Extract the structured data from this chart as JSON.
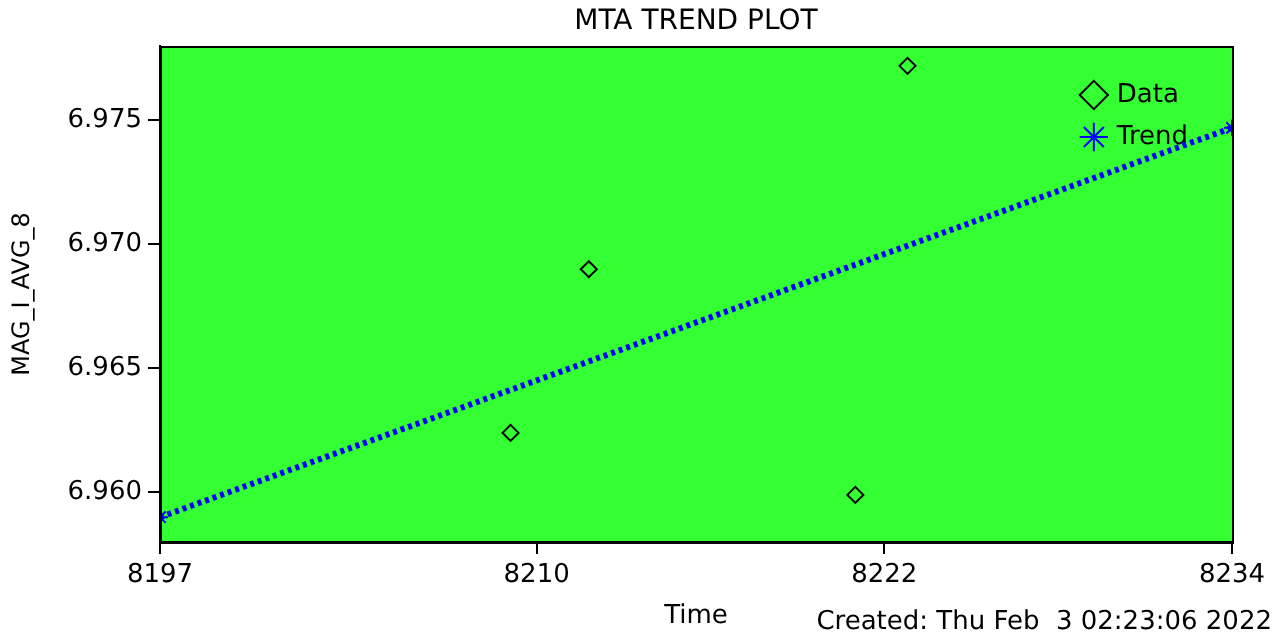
{
  "chart_data": {
    "type": "scatter",
    "title": "MTA TREND PLOT",
    "xlabel": "Time",
    "ylabel": "MAG_I_AVG_8",
    "annotations": [
      "Created: Thu Feb  3 02:23:06 2022"
    ],
    "series": [
      {
        "name": "Data",
        "type": "scatter",
        "marker": "diamond",
        "color": "#000000",
        "x": [
          8209.1,
          8211.8,
          8221.0,
          8222.8
        ],
        "values": [
          6.9624,
          6.969,
          6.9599,
          6.9772
        ]
      },
      {
        "name": "Trend",
        "type": "line",
        "marker": "cross",
        "line_style": "dotted",
        "color": "#0000ff",
        "x": [
          8197,
          8234
        ],
        "values": [
          6.959,
          6.9747
        ]
      }
    ],
    "xlim": [
      8197,
      8234
    ],
    "xticks": [
      8197,
      8210,
      8222,
      8234
    ],
    "ylim": [
      6.958,
      6.978
    ],
    "yticks": [
      {
        "value": 6.96,
        "label": "6.960"
      },
      6.965,
      {
        "value": 6.97,
        "label": "6.970"
      },
      6.975
    ],
    "grid": false,
    "legend": "top right"
  }
}
